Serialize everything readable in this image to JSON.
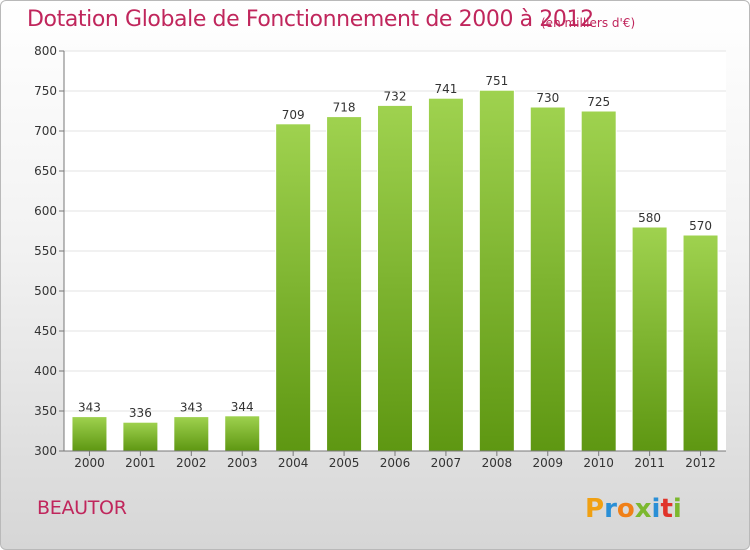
{
  "header": {
    "title": "Dotation Globale de Fonctionnement de 2000 à 2012",
    "unit": "(en milliers d'€)"
  },
  "footer": {
    "commune": "BEAUTOR",
    "logo_text": "Proxiti"
  },
  "colors": {
    "accent": "#c0265c",
    "bar_top": "#9fd24f",
    "bar_bottom": "#5e9712",
    "grid": "#e3e3e3"
  },
  "chart_data": {
    "type": "bar",
    "title": "Dotation Globale de Fonctionnement de 2000 à 2012",
    "unit": "(en milliers d'€)",
    "categories": [
      "2000",
      "2001",
      "2002",
      "2003",
      "2004",
      "2005",
      "2006",
      "2007",
      "2008",
      "2009",
      "2010",
      "2011",
      "2012"
    ],
    "values": [
      343,
      336,
      343,
      344,
      709,
      718,
      732,
      741,
      751,
      730,
      725,
      580,
      570
    ],
    "xlabel": "",
    "ylabel": "",
    "ylim": [
      300,
      800
    ],
    "yticks": [
      300,
      350,
      400,
      450,
      500,
      550,
      600,
      650,
      700,
      750,
      800
    ],
    "grid": true,
    "data_labels": true
  }
}
